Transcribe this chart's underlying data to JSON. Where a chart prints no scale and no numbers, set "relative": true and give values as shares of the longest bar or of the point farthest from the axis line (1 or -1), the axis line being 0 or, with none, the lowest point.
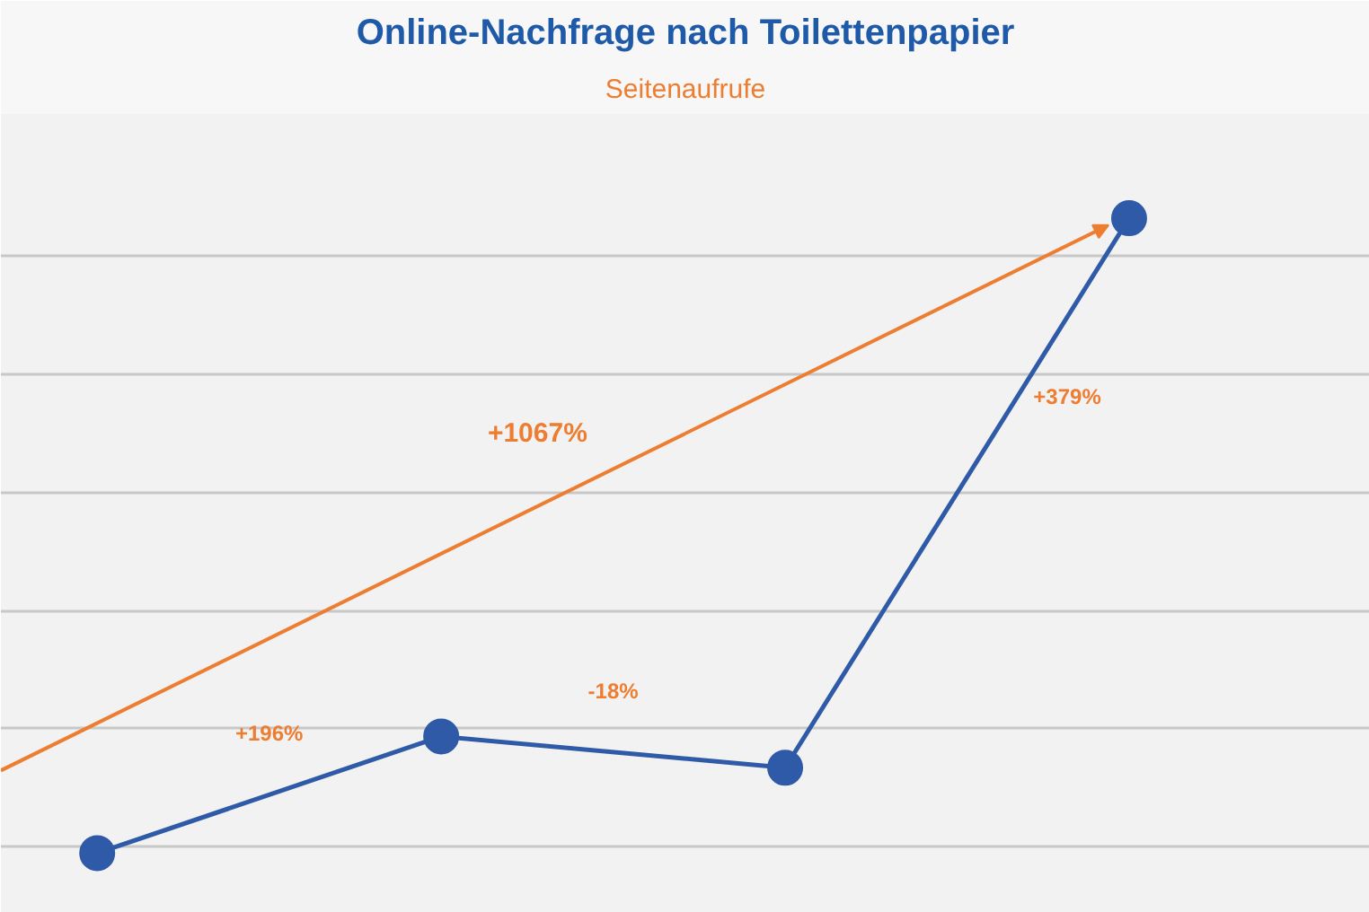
{
  "chart_data": {
    "type": "line",
    "title": "Online-Nachfrage nach Toilettenpapier",
    "subtitle": "Seitenaufrufe",
    "categories": [
      null,
      null,
      null,
      null
    ],
    "series": [
      {
        "color": "#2f5aa8",
        "values": [
          0.086,
          0.254,
          0.209,
          1.0
        ]
      }
    ],
    "relative": true,
    "marker": "circle",
    "line_style": "solid",
    "grid": "y",
    "tick_labels": false,
    "annotations": [
      "+196%",
      "-18%",
      "+379%",
      "+1067%"
    ]
  }
}
